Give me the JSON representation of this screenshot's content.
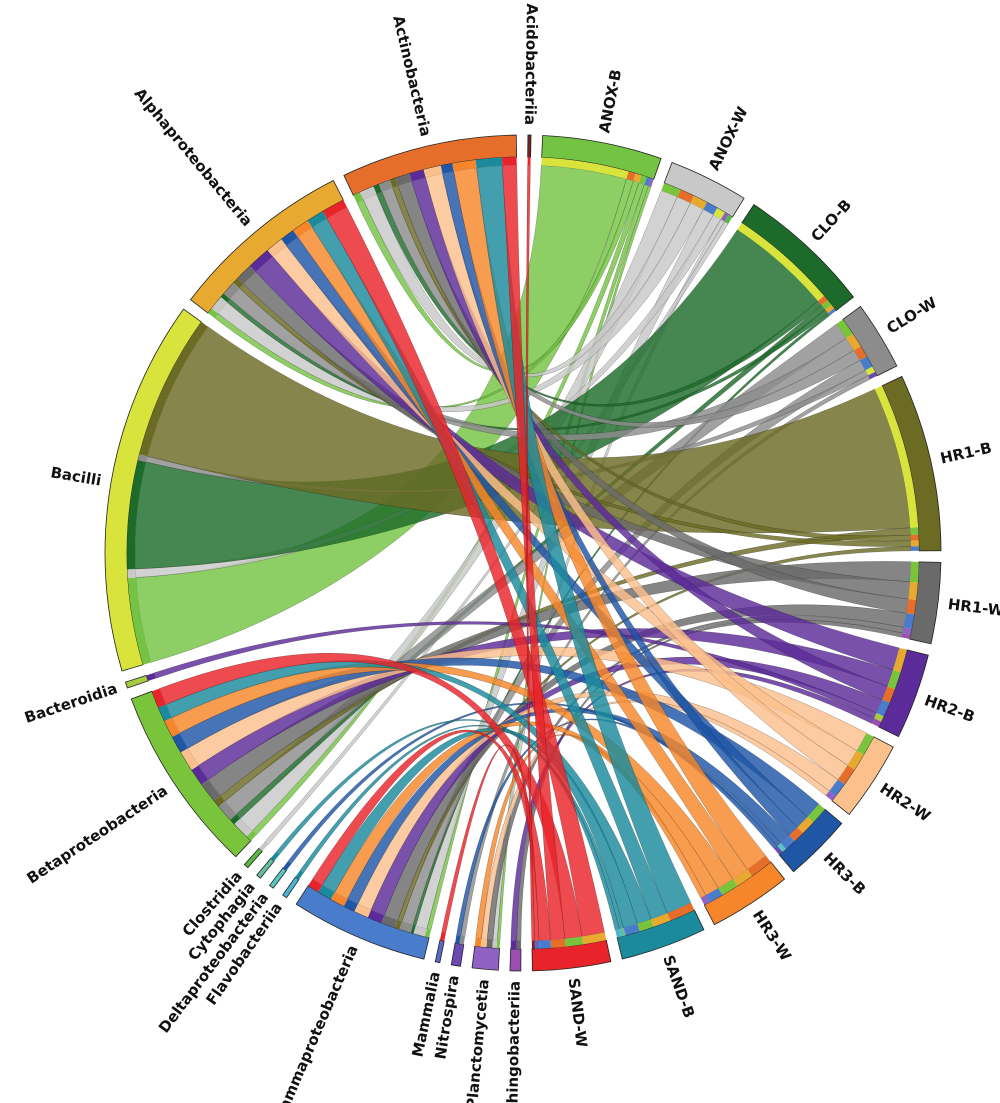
{
  "chart_data": {
    "type": "chord",
    "title": "",
    "groups": [
      {
        "name": "ANOX-B",
        "color": "#74c343",
        "side": "sample"
      },
      {
        "name": "ANOX-W",
        "color": "#c8c8c8",
        "side": "sample"
      },
      {
        "name": "CLO-B",
        "color": "#1d6b2a",
        "side": "sample"
      },
      {
        "name": "CLO-W",
        "color": "#8c8c8c",
        "side": "sample"
      },
      {
        "name": "HR1-B",
        "color": "#6b6b24",
        "side": "sample"
      },
      {
        "name": "HR1-W",
        "color": "#6a6a6a",
        "side": "sample"
      },
      {
        "name": "HR2-B",
        "color": "#5b2b99",
        "side": "sample"
      },
      {
        "name": "HR2-W",
        "color": "#fbc08c",
        "side": "sample"
      },
      {
        "name": "HR3-B",
        "color": "#1f56a6",
        "side": "sample"
      },
      {
        "name": "HR3-W",
        "color": "#f7862a",
        "side": "sample"
      },
      {
        "name": "SAND-B",
        "color": "#1a8a9c",
        "side": "sample"
      },
      {
        "name": "SAND-W",
        "color": "#e9232a",
        "side": "sample"
      },
      {
        "name": "Sphingobacteriia",
        "color": "#9b4fb0",
        "side": "taxon"
      },
      {
        "name": "Planctomycetia",
        "color": "#8e61c3",
        "side": "taxon"
      },
      {
        "name": "Nitrospira",
        "color": "#6a4ab0",
        "side": "taxon"
      },
      {
        "name": "Mammalia",
        "color": "#5a6ac4",
        "side": "taxon"
      },
      {
        "name": "Gammaproteobacteria",
        "color": "#4a7ccc",
        "side": "taxon"
      },
      {
        "name": "Flavobacteriia",
        "color": "#4ab3d1",
        "side": "taxon"
      },
      {
        "name": "Deltaproteobacteria",
        "color": "#5ac6c1",
        "side": "taxon"
      },
      {
        "name": "Cytophagia",
        "color": "#62c09e",
        "side": "taxon"
      },
      {
        "name": "Clostridia",
        "color": "#58b846",
        "side": "taxon"
      },
      {
        "name": "Betaproteobacteria",
        "color": "#7ac43c",
        "side": "taxon"
      },
      {
        "name": "Bacteroidia",
        "color": "#a6cb3f",
        "side": "taxon"
      },
      {
        "name": "Bacilli",
        "color": "#d8e33b",
        "side": "taxon"
      },
      {
        "name": "Alphaproteobacteria",
        "color": "#e7a92f",
        "side": "taxon"
      },
      {
        "name": "Actinobacteria",
        "color": "#e56f2a",
        "side": "taxon"
      },
      {
        "name": "Acidobacteriia",
        "color": "#7a1f1f",
        "side": "taxon"
      }
    ],
    "flows": [
      {
        "sample": "ANOX-B",
        "taxon": "Bacilli",
        "value": 60
      },
      {
        "sample": "ANOX-B",
        "taxon": "Actinobacteria",
        "value": 5
      },
      {
        "sample": "ANOX-B",
        "taxon": "Alphaproteobacteria",
        "value": 4
      },
      {
        "sample": "ANOX-B",
        "taxon": "Betaproteobacteria",
        "value": 4
      },
      {
        "sample": "ANOX-B",
        "taxon": "Gammaproteobacteria",
        "value": 3
      },
      {
        "sample": "ANOX-B",
        "taxon": "Planctomycetia",
        "value": 2
      },
      {
        "sample": "ANOX-W",
        "taxon": "Betaproteobacteria",
        "value": 12
      },
      {
        "sample": "ANOX-W",
        "taxon": "Actinobacteria",
        "value": 10
      },
      {
        "sample": "ANOX-W",
        "taxon": "Alphaproteobacteria",
        "value": 10
      },
      {
        "sample": "ANOX-W",
        "taxon": "Gammaproteobacteria",
        "value": 8
      },
      {
        "sample": "ANOX-W",
        "taxon": "Bacilli",
        "value": 6
      },
      {
        "sample": "ANOX-W",
        "taxon": "Planctomycetia",
        "value": 3
      },
      {
        "sample": "ANOX-W",
        "taxon": "Clostridia",
        "value": 3
      },
      {
        "sample": "CLO-B",
        "taxon": "Bacilli",
        "value": 75
      },
      {
        "sample": "CLO-B",
        "taxon": "Actinobacteria",
        "value": 4
      },
      {
        "sample": "CLO-B",
        "taxon": "Betaproteobacteria",
        "value": 4
      },
      {
        "sample": "CLO-B",
        "taxon": "Alphaproteobacteria",
        "value": 3
      },
      {
        "sample": "CLO-B",
        "taxon": "Gammaproteobacteria",
        "value": 2
      },
      {
        "sample": "CLO-W",
        "taxon": "Betaproteobacteria",
        "value": 12
      },
      {
        "sample": "CLO-W",
        "taxon": "Alphaproteobacteria",
        "value": 10
      },
      {
        "sample": "CLO-W",
        "taxon": "Actinobacteria",
        "value": 8
      },
      {
        "sample": "CLO-W",
        "taxon": "Gammaproteobacteria",
        "value": 8
      },
      {
        "sample": "CLO-W",
        "taxon": "Bacilli",
        "value": 4
      },
      {
        "sample": "CLO-W",
        "taxon": "Nitrospira",
        "value": 3
      },
      {
        "sample": "HR1-B",
        "taxon": "Bacilli",
        "value": 100
      },
      {
        "sample": "HR1-B",
        "taxon": "Betaproteobacteria",
        "value": 5
      },
      {
        "sample": "HR1-B",
        "taxon": "Actinobacteria",
        "value": 4
      },
      {
        "sample": "HR1-B",
        "taxon": "Alphaproteobacteria",
        "value": 4
      },
      {
        "sample": "HR1-B",
        "taxon": "Gammaproteobacteria",
        "value": 3
      },
      {
        "sample": "HR1-W",
        "taxon": "Betaproteobacteria",
        "value": 14
      },
      {
        "sample": "HR1-W",
        "taxon": "Alphaproteobacteria",
        "value": 12
      },
      {
        "sample": "HR1-W",
        "taxon": "Actinobacteria",
        "value": 10
      },
      {
        "sample": "HR1-W",
        "taxon": "Gammaproteobacteria",
        "value": 10
      },
      {
        "sample": "HR1-W",
        "taxon": "Planctomycetia",
        "value": 4
      },
      {
        "sample": "HR1-W",
        "taxon": "Sphingobacteriia",
        "value": 3
      },
      {
        "sample": "HR2-B",
        "taxon": "Alphaproteobacteria",
        "value": 16
      },
      {
        "sample": "HR2-B",
        "taxon": "Betaproteobacteria",
        "value": 12
      },
      {
        "sample": "HR2-B",
        "taxon": "Actinobacteria",
        "value": 10
      },
      {
        "sample": "HR2-B",
        "taxon": "Gammaproteobacteria",
        "value": 10
      },
      {
        "sample": "HR2-B",
        "taxon": "Bacteroidia",
        "value": 4
      },
      {
        "sample": "HR2-B",
        "taxon": "Sphingobacteriia",
        "value": 4
      },
      {
        "sample": "HR2-W",
        "taxon": "Betaproteobacteria",
        "value": 14
      },
      {
        "sample": "HR2-W",
        "taxon": "Alphaproteobacteria",
        "value": 12
      },
      {
        "sample": "HR2-W",
        "taxon": "Actinobacteria",
        "value": 12
      },
      {
        "sample": "HR2-W",
        "taxon": "Gammaproteobacteria",
        "value": 10
      },
      {
        "sample": "HR2-W",
        "taxon": "Planctomycetia",
        "value": 4
      },
      {
        "sample": "HR3-B",
        "taxon": "Betaproteobacteria",
        "value": 12
      },
      {
        "sample": "HR3-B",
        "taxon": "Alphaproteobacteria",
        "value": 10
      },
      {
        "sample": "HR3-B",
        "taxon": "Actinobacteria",
        "value": 8
      },
      {
        "sample": "HR3-B",
        "taxon": "Gammaproteobacteria",
        "value": 8
      },
      {
        "sample": "HR3-B",
        "taxon": "Deltaproteobacteria",
        "value": 3
      },
      {
        "sample": "HR3-B",
        "taxon": "Nitrospira",
        "value": 3
      },
      {
        "sample": "HR3-W",
        "taxon": "Actinobacteria",
        "value": 16
      },
      {
        "sample": "HR3-W",
        "taxon": "Alphaproteobacteria",
        "value": 12
      },
      {
        "sample": "HR3-W",
        "taxon": "Betaproteobacteria",
        "value": 12
      },
      {
        "sample": "HR3-W",
        "taxon": "Gammaproteobacteria",
        "value": 10
      },
      {
        "sample": "HR3-W",
        "taxon": "Planctomycetia",
        "value": 4
      },
      {
        "sample": "SAND-B",
        "taxon": "Actinobacteria",
        "value": 18
      },
      {
        "sample": "SAND-B",
        "taxon": "Alphaproteobacteria",
        "value": 12
      },
      {
        "sample": "SAND-B",
        "taxon": "Betaproteobacteria",
        "value": 10
      },
      {
        "sample": "SAND-B",
        "taxon": "Gammaproteobacteria",
        "value": 10
      },
      {
        "sample": "SAND-B",
        "taxon": "Cytophagia",
        "value": 3
      },
      {
        "sample": "SAND-B",
        "taxon": "Flavobacteriia",
        "value": 3
      },
      {
        "sample": "SAND-W",
        "taxon": "Alphaproteobacteria",
        "value": 16
      },
      {
        "sample": "SAND-W",
        "taxon": "Betaproteobacteria",
        "value": 12
      },
      {
        "sample": "SAND-W",
        "taxon": "Actinobacteria",
        "value": 10
      },
      {
        "sample": "SAND-W",
        "taxon": "Gammaproteobacteria",
        "value": 8
      },
      {
        "sample": "SAND-W",
        "taxon": "Mammalia",
        "value": 3
      },
      {
        "sample": "SAND-W",
        "taxon": "Acidobacteriia",
        "value": 2
      }
    ],
    "legend": "none",
    "grid": false
  }
}
